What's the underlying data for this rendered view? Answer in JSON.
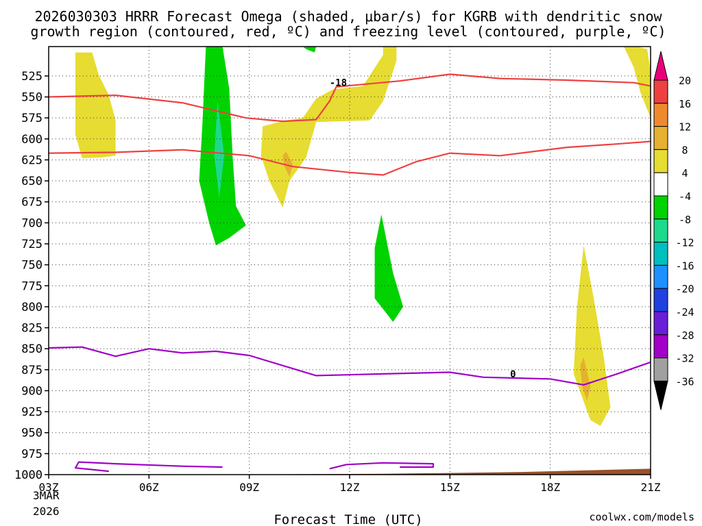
{
  "chart_data": {
    "type": "heatmap",
    "title_line1": "2026030303 HRRR Forecast Omega (shaded, μbar/s) for KGRB with dendritic snow",
    "title_line2": "growth region (contoured, red, ºC) and freezing level (contoured, purple, ºC)",
    "xlabel": "Forecast Time (UTC)",
    "date_label_1": "3MAR",
    "date_label_2": "2026",
    "credit": "coolwx.com/models",
    "x_range_hours": [
      0,
      18
    ],
    "y_range_hpa": [
      1000,
      490
    ],
    "x_ticks": [
      {
        "hour": 0,
        "label": "03Z"
      },
      {
        "hour": 3,
        "label": "06Z"
      },
      {
        "hour": 6,
        "label": "09Z"
      },
      {
        "hour": 9,
        "label": "12Z"
      },
      {
        "hour": 12,
        "label": "15Z"
      },
      {
        "hour": 15,
        "label": "18Z"
      },
      {
        "hour": 18,
        "label": "21Z"
      }
    ],
    "y_ticks": [
      {
        "p": 525,
        "label": "525"
      },
      {
        "p": 550,
        "label": "550"
      },
      {
        "p": 575,
        "label": "575"
      },
      {
        "p": 600,
        "label": "600"
      },
      {
        "p": 625,
        "label": "625"
      },
      {
        "p": 650,
        "label": "650"
      },
      {
        "p": 675,
        "label": "675"
      },
      {
        "p": 700,
        "label": "700"
      },
      {
        "p": 725,
        "label": "725"
      },
      {
        "p": 750,
        "label": "750"
      },
      {
        "p": 775,
        "label": "775"
      },
      {
        "p": 800,
        "label": "800"
      },
      {
        "p": 825,
        "label": "825"
      },
      {
        "p": 850,
        "label": "850"
      },
      {
        "p": 875,
        "label": "875"
      },
      {
        "p": 900,
        "label": "900"
      },
      {
        "p": 925,
        "label": "925"
      },
      {
        "p": 950,
        "label": "950"
      },
      {
        "p": 975,
        "label": "975"
      },
      {
        "p": 1000,
        "label": "1000"
      }
    ],
    "colorbar": [
      {
        "label": "20",
        "color": "#e8007a"
      },
      {
        "label": "16",
        "color": "#ee4040"
      },
      {
        "label": "12",
        "color": "#ee8a2e"
      },
      {
        "label": "8",
        "color": "#e6b030"
      },
      {
        "label": "4",
        "color": "#e6dc32"
      },
      {
        "label": "-4",
        "color": "#ffffff"
      },
      {
        "label": "-8",
        "color": "#00d300"
      },
      {
        "label": "-12",
        "color": "#1ed88c"
      },
      {
        "label": "-16",
        "color": "#00bfbf"
      },
      {
        "label": "-20",
        "color": "#1e90ff"
      },
      {
        "label": "-24",
        "color": "#2040e0"
      },
      {
        "label": "-28",
        "color": "#6a1ed8"
      },
      {
        "label": "-32",
        "color": "#a000c8"
      },
      {
        "label": "-36",
        "color": "#a0a0a0"
      }
    ],
    "colorbar_bottom_color": "#000000",
    "omega_regions": [
      {
        "value_band": "4 to 8",
        "color": "#e6dc32",
        "points": [
          [
            0.8,
            497
          ],
          [
            1.3,
            497
          ],
          [
            1.5,
            524
          ],
          [
            1.8,
            548
          ],
          [
            2.0,
            578
          ],
          [
            2.0,
            620
          ],
          [
            1.6,
            622
          ],
          [
            1.0,
            623
          ],
          [
            0.8,
            595
          ],
          [
            0.8,
            540
          ]
        ]
      },
      {
        "value_band": "4 to 8",
        "color": "#e6dc32",
        "points": [
          [
            10.4,
            490
          ],
          [
            10.4,
            507
          ],
          [
            10.0,
            555
          ],
          [
            9.6,
            578
          ],
          [
            8.0,
            580
          ],
          [
            7.7,
            622
          ],
          [
            7.2,
            650
          ],
          [
            7.0,
            682
          ],
          [
            6.6,
            650
          ],
          [
            6.35,
            620
          ],
          [
            6.4,
            585
          ],
          [
            7.1,
            578
          ],
          [
            7.6,
            575
          ],
          [
            8.0,
            552
          ],
          [
            8.5,
            541
          ],
          [
            9.4,
            537
          ],
          [
            10.0,
            500
          ],
          [
            10.0,
            490
          ]
        ]
      },
      {
        "value_band": "4 to 8",
        "color": "#e6dc32",
        "points": [
          [
            17.2,
            490
          ],
          [
            17.6,
            490
          ],
          [
            17.9,
            493
          ],
          [
            18.0,
            520
          ],
          [
            18.0,
            575
          ],
          [
            17.7,
            545
          ],
          [
            17.5,
            515
          ]
        ]
      },
      {
        "value_band": "4 to 8",
        "color": "#e6dc32",
        "points": [
          [
            16.0,
            727
          ],
          [
            16.3,
            790
          ],
          [
            16.6,
            860
          ],
          [
            16.8,
            920
          ],
          [
            16.5,
            942
          ],
          [
            16.2,
            935
          ],
          [
            15.7,
            880
          ],
          [
            15.8,
            800
          ]
        ]
      },
      {
        "value_band": "8 to 12",
        "color": "#e6b030",
        "points": [
          [
            7.1,
            615
          ],
          [
            7.3,
            630
          ],
          [
            7.2,
            645
          ],
          [
            7.05,
            633
          ],
          [
            7.0,
            620
          ]
        ]
      },
      {
        "value_band": "8 to 12",
        "color": "#e6b030",
        "points": [
          [
            16.0,
            860
          ],
          [
            16.2,
            895
          ],
          [
            16.1,
            912
          ],
          [
            15.95,
            895
          ],
          [
            15.9,
            870
          ]
        ]
      },
      {
        "value_band": "-4 to -8",
        "color": "#00d300",
        "points": [
          [
            4.7,
            490
          ],
          [
            5.2,
            490
          ],
          [
            5.4,
            540
          ],
          [
            5.5,
            620
          ],
          [
            5.6,
            680
          ],
          [
            5.9,
            703
          ],
          [
            5.4,
            718
          ],
          [
            5.0,
            727
          ],
          [
            4.8,
            700
          ],
          [
            4.5,
            650
          ],
          [
            4.6,
            580
          ]
        ]
      },
      {
        "value_band": "-4 to -8",
        "color": "#00d300",
        "points": [
          [
            7.6,
            490
          ],
          [
            8.0,
            490
          ],
          [
            7.95,
            497
          ],
          [
            7.7,
            493
          ]
        ]
      },
      {
        "value_band": "-4 to -8",
        "color": "#00d300",
        "points": [
          [
            9.95,
            690
          ],
          [
            10.3,
            760
          ],
          [
            10.6,
            800
          ],
          [
            10.3,
            818
          ],
          [
            9.75,
            790
          ],
          [
            9.75,
            730
          ]
        ]
      },
      {
        "value_band": "-8 to -12",
        "color": "#1ed88c",
        "points": [
          [
            5.05,
            555
          ],
          [
            5.25,
            620
          ],
          [
            5.1,
            670
          ],
          [
            4.95,
            620
          ]
        ]
      }
    ],
    "dgz_contours": [
      {
        "label": "-18",
        "color": "#ee4040",
        "points": [
          [
            0,
            550
          ],
          [
            2,
            548
          ],
          [
            4,
            557
          ],
          [
            5.9,
            575
          ],
          [
            7,
            579
          ],
          [
            8,
            577
          ],
          [
            8.4,
            555
          ],
          [
            8.6,
            538
          ],
          [
            10.5,
            531
          ],
          [
            12,
            523
          ],
          [
            13.5,
            528
          ],
          [
            15.5,
            530
          ],
          [
            17.5,
            533
          ],
          [
            18,
            537
          ]
        ]
      },
      {
        "label": "",
        "color": "#ee4040",
        "points": [
          [
            0,
            617
          ],
          [
            2,
            616
          ],
          [
            4,
            613
          ],
          [
            6,
            620
          ],
          [
            7.3,
            633
          ],
          [
            9,
            640
          ],
          [
            10,
            643
          ],
          [
            11,
            627
          ],
          [
            12,
            617
          ],
          [
            13.5,
            620
          ],
          [
            15.5,
            610
          ],
          [
            17,
            606
          ],
          [
            18,
            603
          ]
        ]
      }
    ],
    "dgz_label": {
      "text": "-18",
      "hour": 8.4,
      "p": 533
    },
    "freezing_level_contours": [
      {
        "label": "0",
        "color": "#a000c8",
        "points": [
          [
            0,
            849
          ],
          [
            1,
            848
          ],
          [
            2,
            859
          ],
          [
            3,
            850
          ],
          [
            4,
            855
          ],
          [
            5,
            853
          ],
          [
            6,
            858
          ],
          [
            8,
            882
          ],
          [
            10,
            880
          ],
          [
            12,
            878
          ],
          [
            13,
            884
          ],
          [
            15,
            886
          ],
          [
            16,
            893
          ],
          [
            17,
            880
          ],
          [
            18,
            866
          ]
        ]
      },
      {
        "label": "",
        "color": "#a000c8",
        "points": [
          [
            1.8,
            996
          ],
          [
            0.8,
            992
          ],
          [
            0.9,
            985
          ],
          [
            2,
            987
          ],
          [
            4,
            990
          ],
          [
            5.2,
            991
          ]
        ]
      },
      {
        "label": "",
        "color": "#a000c8",
        "points": [
          [
            8.4,
            993
          ],
          [
            8.9,
            988
          ],
          [
            10,
            986
          ],
          [
            11.5,
            987
          ],
          [
            11.5,
            991
          ],
          [
            10.5,
            991
          ]
        ]
      }
    ],
    "freezing_label": {
      "text": "0",
      "hour": 13.8,
      "p": 880
    },
    "terrain_color": "#994f2a",
    "terrain": [
      [
        0,
        1000
      ],
      [
        5,
        1000
      ],
      [
        10,
        999
      ],
      [
        14,
        997
      ],
      [
        18,
        993
      ]
    ]
  }
}
